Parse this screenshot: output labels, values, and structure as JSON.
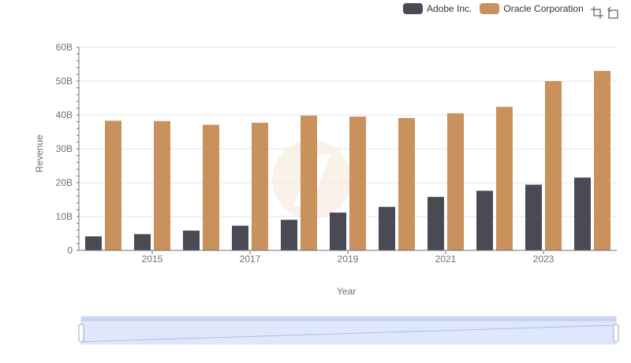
{
  "legend": {
    "items": [
      {
        "label": "Adobe Inc.",
        "color": "#4a4a55"
      },
      {
        "label": "Oracle Corporation",
        "color": "#c9915c"
      }
    ]
  },
  "toolbar": {
    "icons": [
      "zoom-select-icon",
      "zoom-reset-icon"
    ]
  },
  "chart_data": {
    "type": "bar",
    "xlabel": "Year",
    "ylabel": "Revenue",
    "ylim": [
      0,
      60000000000
    ],
    "yticks": [
      "0",
      "10B",
      "20B",
      "30B",
      "40B",
      "50B",
      "60B"
    ],
    "xtick_labels": [
      "2015",
      "2017",
      "2019",
      "2021",
      "2023"
    ],
    "categories": [
      "2014",
      "2015",
      "2016",
      "2017",
      "2018",
      "2019",
      "2020",
      "2021",
      "2022",
      "2023",
      "2024"
    ],
    "series": [
      {
        "name": "Adobe Inc.",
        "color": "#4a4a55",
        "values": [
          4150000000,
          4800000000,
          5850000000,
          7300000000,
          9030000000,
          11170000000,
          12870000000,
          15790000000,
          17610000000,
          19410000000,
          21510000000
        ]
      },
      {
        "name": "Oracle Corporation",
        "color": "#c9915c",
        "values": [
          38300000000,
          38200000000,
          37100000000,
          37700000000,
          39800000000,
          39500000000,
          39100000000,
          40500000000,
          42400000000,
          50000000000,
          53000000000
        ]
      }
    ],
    "grid": true,
    "legend_position": "top-right",
    "datazoom": {
      "start": 0,
      "end": 100
    }
  }
}
